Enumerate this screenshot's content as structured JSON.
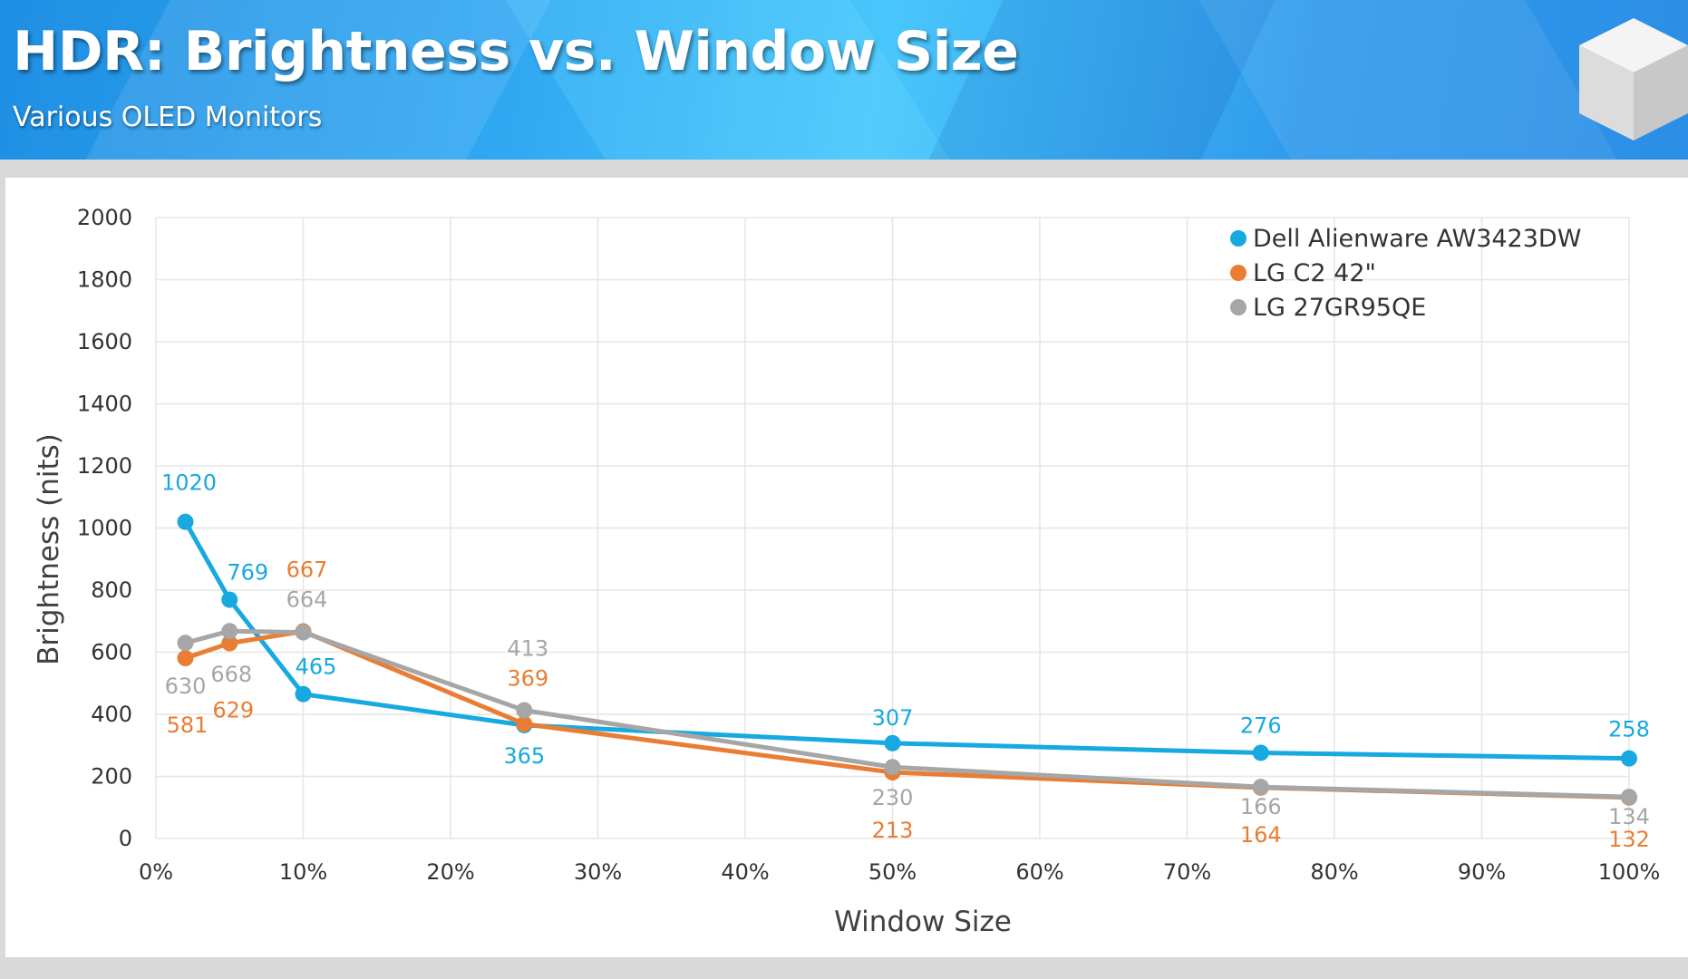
{
  "header": {
    "title": "HDR: Brightness vs. Window Size",
    "subtitle": "Various OLED Monitors"
  },
  "colors": {
    "header_bg": "#2fa7f2",
    "dell": "#17a9df",
    "lgc2": "#e87d33",
    "lg27": "#a6a6a6",
    "grid": "#e6e6e6"
  },
  "chart_data": {
    "type": "line",
    "xlabel": "Window Size",
    "ylabel": "Brightness (nits)",
    "xlim": [
      0,
      100
    ],
    "ylim": [
      0,
      2000
    ],
    "x_ticks": [
      0,
      10,
      20,
      30,
      40,
      50,
      60,
      70,
      80,
      90,
      100
    ],
    "x_tick_labels": [
      "0%",
      "10%",
      "20%",
      "30%",
      "40%",
      "50%",
      "60%",
      "70%",
      "80%",
      "90%",
      "100%"
    ],
    "y_ticks": [
      0,
      200,
      400,
      600,
      800,
      1000,
      1200,
      1400,
      1600,
      1800,
      2000
    ],
    "y_tick_labels": [
      "0",
      "200",
      "400",
      "600",
      "800",
      "1000",
      "1200",
      "1400",
      "1600",
      "1800",
      "2000"
    ],
    "grid": true,
    "legend_position": "top-right",
    "x": [
      2,
      5,
      10,
      25,
      50,
      75,
      100
    ],
    "series": [
      {
        "name": "Dell Alienware AW3423DW",
        "color": "#17a9df",
        "values": [
          1020,
          769,
          465,
          365,
          307,
          276,
          258
        ]
      },
      {
        "name": "LG C2 42\"",
        "color": "#e87d33",
        "values": [
          581,
          629,
          667,
          369,
          213,
          164,
          132
        ]
      },
      {
        "name": "LG 27GR95QE",
        "color": "#a6a6a6",
        "values": [
          630,
          668,
          664,
          413,
          230,
          166,
          134
        ]
      }
    ]
  }
}
